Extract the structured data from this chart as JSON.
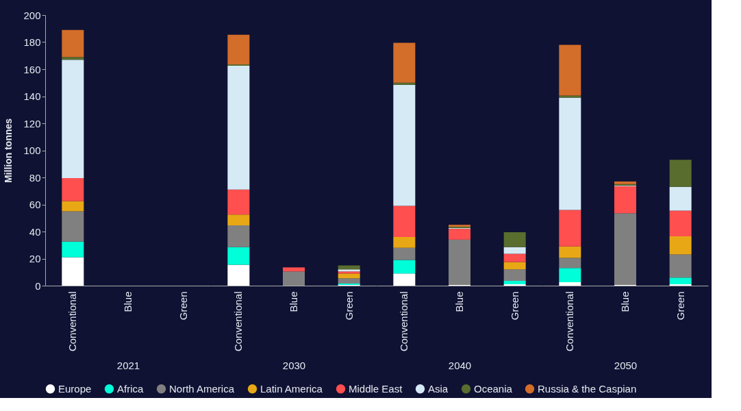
{
  "chart_data": [
    {
      "type": "bar",
      "stacked": true,
      "ylabel": "Million tonnes",
      "xlabel": "2021",
      "categories": [
        "Conventional",
        "Blue",
        "Green"
      ],
      "ylim": [
        0,
        200
      ],
      "yticks": [
        0,
        20,
        40,
        60,
        80,
        100,
        120,
        140,
        160,
        180,
        200
      ],
      "grid": false,
      "legend": "bottom",
      "series": [
        {
          "name": "Europe",
          "color": "#ffffff",
          "values": [
            21,
            null,
            null
          ]
        },
        {
          "name": "Africa",
          "color": "#00ffd8",
          "values": [
            11.5,
            null,
            null
          ]
        },
        {
          "name": "North America",
          "color": "#808080",
          "values": [
            22.5,
            null,
            null
          ]
        },
        {
          "name": "Latin America",
          "color": "#e8a815",
          "values": [
            7.5,
            null,
            null
          ]
        },
        {
          "name": "Middle East",
          "color": "#ff4f4f",
          "values": [
            17,
            null,
            null
          ]
        },
        {
          "name": "Asia",
          "color": "#d6eaf6",
          "values": [
            87.5,
            null,
            null
          ]
        },
        {
          "name": "Oceania",
          "color": "#596d2e",
          "values": [
            2,
            null,
            null
          ]
        },
        {
          "name": "Russia & the Caspian",
          "color": "#d36d2a",
          "values": [
            20,
            null,
            null
          ]
        }
      ]
    },
    {
      "type": "bar",
      "stacked": true,
      "xlabel": "2030",
      "categories": [
        "Conventional",
        "Blue",
        "Green"
      ],
      "ylim": [
        0,
        200
      ],
      "yticks": [
        0,
        20,
        40,
        60,
        80,
        100,
        120,
        140,
        160,
        180,
        200
      ],
      "grid": false,
      "tick_labels": "x",
      "series": [
        {
          "name": "Europe",
          "color": "#ffffff",
          "values": [
            15.5,
            null,
            0.5
          ]
        },
        {
          "name": "Africa",
          "color": "#00ffd8",
          "values": [
            13,
            null,
            1
          ]
        },
        {
          "name": "North America",
          "color": "#808080",
          "values": [
            16,
            10.5,
            4
          ]
        },
        {
          "name": "Latin America",
          "color": "#e8a815",
          "values": [
            8,
            null,
            3.5
          ]
        },
        {
          "name": "Middle East",
          "color": "#ff4f4f",
          "values": [
            18.5,
            3,
            1.5
          ]
        },
        {
          "name": "Asia",
          "color": "#d6eaf6",
          "values": [
            91.5,
            null,
            1.5
          ]
        },
        {
          "name": "Oceania",
          "color": "#596d2e",
          "values": [
            1,
            null,
            3
          ]
        },
        {
          "name": "Russia & the Caspian",
          "color": "#d36d2a",
          "values": [
            22,
            null,
            null
          ]
        }
      ]
    },
    {
      "type": "bar",
      "stacked": true,
      "xlabel": "2040",
      "categories": [
        "Conventional",
        "Blue",
        "Green"
      ],
      "ylim": [
        0,
        200
      ],
      "yticks": [
        0,
        20,
        40,
        60,
        80,
        100,
        120,
        140,
        160,
        180,
        200
      ],
      "grid": false,
      "tick_labels": "x",
      "series": [
        {
          "name": "Europe",
          "color": "#ffffff",
          "values": [
            9,
            0.5,
            1
          ]
        },
        {
          "name": "Africa",
          "color": "#00ffd8",
          "values": [
            10,
            null,
            2.5
          ]
        },
        {
          "name": "North America",
          "color": "#808080",
          "values": [
            9,
            33.5,
            8.5
          ]
        },
        {
          "name": "Latin America",
          "color": "#e8a815",
          "values": [
            8,
            null,
            5.5
          ]
        },
        {
          "name": "Middle East",
          "color": "#ff4f4f",
          "values": [
            23,
            8,
            6
          ]
        },
        {
          "name": "Asia",
          "color": "#d6eaf6",
          "values": [
            89.5,
            0.5,
            5
          ]
        },
        {
          "name": "Oceania",
          "color": "#596d2e",
          "values": [
            1.5,
            1,
            11
          ]
        },
        {
          "name": "Russia & the Caspian",
          "color": "#d36d2a",
          "values": [
            29.5,
            1.5,
            null
          ]
        }
      ]
    },
    {
      "type": "bar",
      "stacked": true,
      "xlabel": "2050",
      "categories": [
        "Conventional",
        "Blue",
        "Green"
      ],
      "ylim": [
        0,
        200
      ],
      "yticks": [
        0,
        20,
        40,
        60,
        80,
        100,
        120,
        140,
        160,
        180,
        200
      ],
      "grid": false,
      "tick_labels": "x",
      "series": [
        {
          "name": "Europe",
          "color": "#ffffff",
          "values": [
            2.5,
            0.5,
            1
          ]
        },
        {
          "name": "Africa",
          "color": "#00ffd8",
          "values": [
            10.5,
            null,
            5
          ]
        },
        {
          "name": "North America",
          "color": "#808080",
          "values": [
            7.5,
            53,
            17
          ]
        },
        {
          "name": "Latin America",
          "color": "#e8a815",
          "values": [
            8.5,
            null,
            13.5
          ]
        },
        {
          "name": "Middle East",
          "color": "#ff4f4f",
          "values": [
            27,
            20,
            19
          ]
        },
        {
          "name": "Asia",
          "color": "#d6eaf6",
          "values": [
            83,
            0.5,
            17.5
          ]
        },
        {
          "name": "Oceania",
          "color": "#596d2e",
          "values": [
            1.5,
            1,
            20
          ]
        },
        {
          "name": "Russia & the Caspian",
          "color": "#d36d2a",
          "values": [
            37.5,
            2,
            null
          ]
        }
      ]
    }
  ]
}
